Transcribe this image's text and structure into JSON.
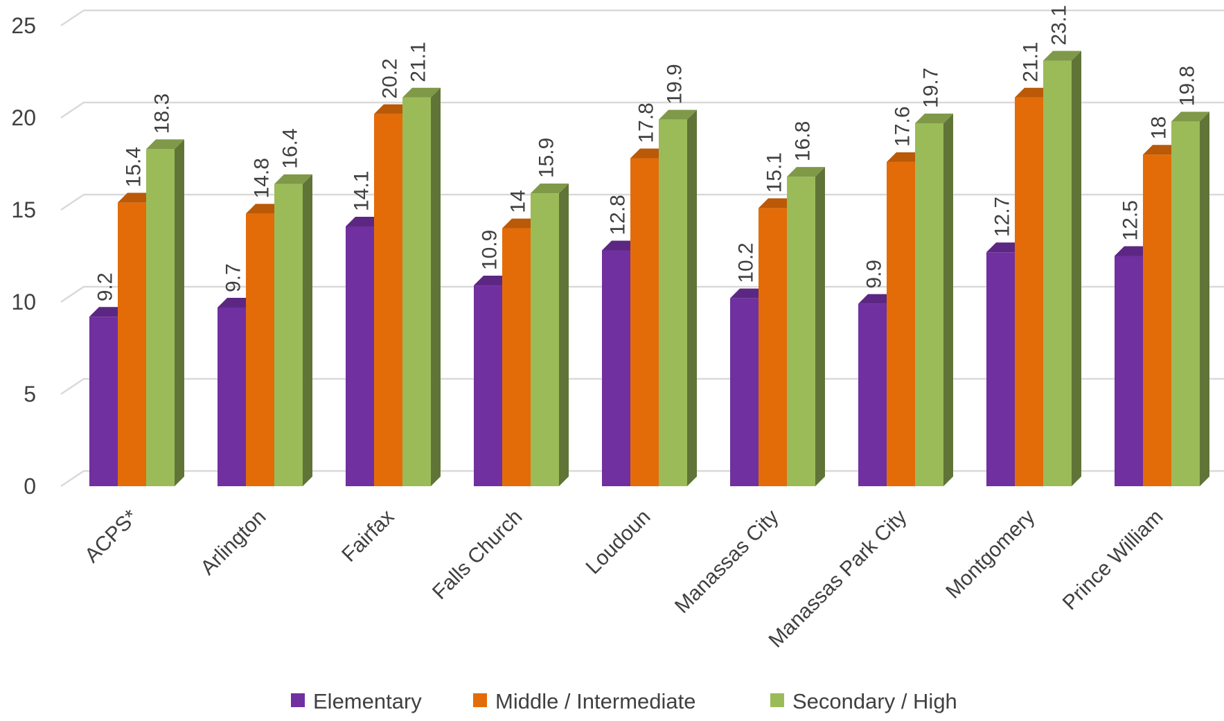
{
  "chart_data": {
    "type": "bar",
    "title": "",
    "xlabel": "",
    "ylabel": "",
    "ylim": [
      0,
      25
    ],
    "yticks": [
      "0",
      "5",
      "10",
      "15",
      "20",
      "25"
    ],
    "grid": true,
    "legend_position": "bottom",
    "categories": [
      "ACPS*",
      "Arlington",
      "Fairfax",
      "Falls Church",
      "Loudoun",
      "Manassas City",
      "Manassas Park City",
      "Montgomery",
      "Prince William"
    ],
    "series": [
      {
        "name": "Elementary",
        "color": "#7030A0",
        "values": [
          9.2,
          9.7,
          14.1,
          10.9,
          12.8,
          10.2,
          9.9,
          12.7,
          12.5
        ],
        "labels": [
          "9.2",
          "9.7",
          "14.1",
          "10.9",
          "12.8",
          "10.2",
          "9.9",
          "12.7",
          "12.5"
        ]
      },
      {
        "name": "Middle / Intermediate",
        "color": "#E36C09",
        "values": [
          15.4,
          14.8,
          20.2,
          14,
          17.8,
          15.1,
          17.6,
          21.1,
          18
        ],
        "labels": [
          "15.4",
          "14.8",
          "20.2",
          "14",
          "17.8",
          "15.1",
          "17.6",
          "21.1",
          "18"
        ]
      },
      {
        "name": "Secondary / High",
        "color": "#9BBB59",
        "values": [
          18.3,
          16.4,
          21.1,
          15.9,
          19.9,
          16.8,
          19.7,
          23.1,
          19.8
        ],
        "labels": [
          "18.3",
          "16.4",
          "21.1",
          "15.9",
          "19.9",
          "16.8",
          "19.7",
          "23.1",
          "19.8"
        ]
      }
    ]
  }
}
